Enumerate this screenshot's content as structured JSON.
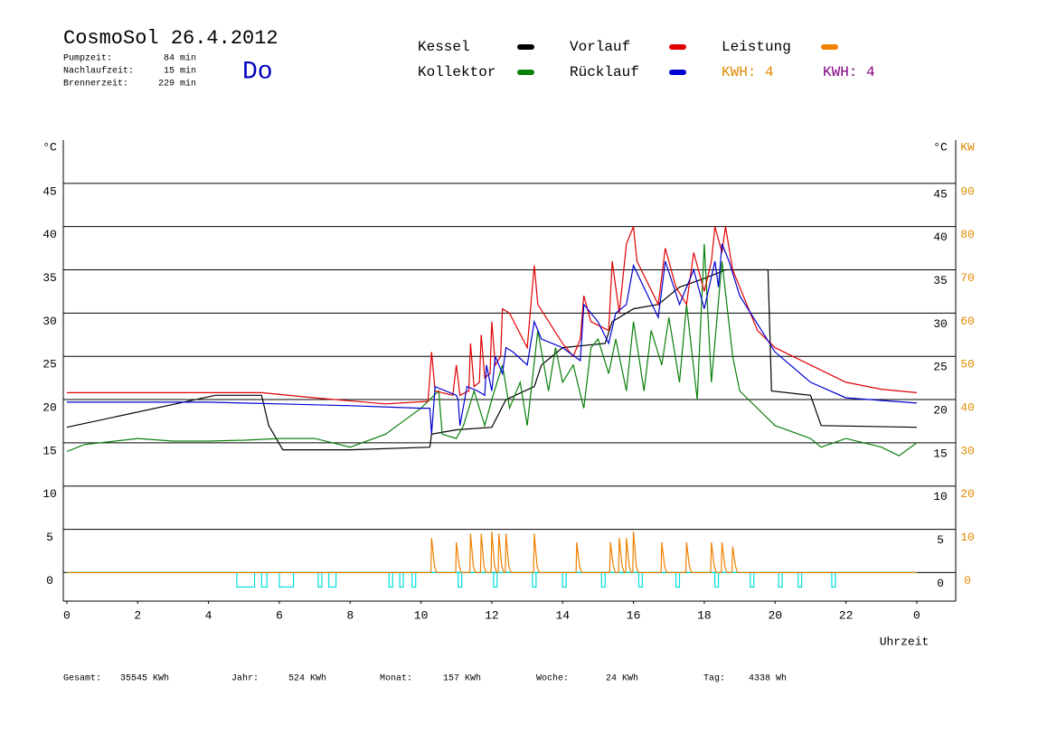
{
  "header": {
    "title": "CosmoSol 26.4.2012",
    "weekday": "Do",
    "stats": [
      {
        "label": "Pumpzeit:",
        "value": "84 min"
      },
      {
        "label": "Nachlaufzeit:",
        "value": "15 min"
      },
      {
        "label": "Brennerzeit:",
        "value": "229 min"
      }
    ]
  },
  "chart_data": {
    "type": "line",
    "ylabel": "°C",
    "y2label": "KW",
    "xlabel": "Uhrzeit",
    "xlim": [
      -0.1,
      25.1
    ],
    "ylim": [
      -3.3,
      50
    ],
    "y2lim": [
      -6.6,
      100
    ],
    "xticks": [
      0,
      2,
      4,
      6,
      8,
      10,
      12,
      14,
      16,
      18,
      20,
      22,
      {
        "value": 24,
        "label": "0"
      }
    ],
    "yticks": [
      0,
      5,
      10,
      15,
      20,
      25,
      30,
      35,
      40,
      45
    ],
    "y2ticks": [
      0,
      10,
      20,
      30,
      40,
      50,
      60,
      70,
      80,
      90
    ],
    "grid": true,
    "series": [
      {
        "name": "Kessel",
        "color": "#000000",
        "x": [
          0,
          4.2,
          5.5,
          5.7,
          6.1,
          8,
          10.25,
          10.3,
          11,
          12,
          12.4,
          13.2,
          13.4,
          14,
          15.2,
          15.4,
          16,
          16.7,
          17.3,
          18,
          18.3,
          18.6,
          19.8,
          19.9,
          21,
          21.3,
          24
        ],
        "values": [
          16.8,
          20.5,
          20.5,
          17,
          14.2,
          14.2,
          14.5,
          16,
          16.5,
          16.8,
          20,
          21.5,
          24,
          26,
          26.5,
          29,
          30.5,
          31,
          33,
          34,
          34.5,
          35,
          35,
          21,
          20.5,
          17,
          16.8
        ]
      },
      {
        "name": "Kollektor",
        "color": "#0a800a",
        "x": [
          0,
          0.5,
          2,
          3,
          4,
          5,
          6,
          7,
          8,
          9,
          10,
          10.5,
          10.6,
          11,
          11.2,
          11.5,
          11.8,
          12,
          12.3,
          12.5,
          12.8,
          13,
          13.3,
          13.6,
          13.8,
          14,
          14.3,
          14.6,
          14.8,
          15,
          15.3,
          15.5,
          15.8,
          16,
          16.3,
          16.5,
          16.8,
          17,
          17.3,
          17.5,
          17.8,
          18,
          18.2,
          18.5,
          18.8,
          19,
          20,
          21,
          21.3,
          22,
          23,
          23.5,
          24
        ],
        "values": [
          14,
          14.8,
          15.5,
          15.2,
          15.2,
          15.3,
          15.5,
          15.5,
          14.5,
          16,
          19,
          21,
          16,
          15.5,
          17,
          21,
          17,
          20,
          24,
          19,
          22,
          17,
          28,
          21,
          26,
          22,
          24,
          19,
          26,
          27,
          23,
          27,
          21,
          29,
          21,
          28,
          24,
          29.5,
          22,
          31,
          20,
          38,
          22,
          36,
          25,
          21,
          17,
          15.5,
          14.5,
          15.5,
          14.5,
          13.5,
          15
        ]
      },
      {
        "name": "Vorlauf",
        "color": "#e00000",
        "x": [
          0,
          5.5,
          7,
          9,
          10.2,
          10.3,
          10.4,
          10.9,
          11,
          11.1,
          11.35,
          11.4,
          11.5,
          11.65,
          11.7,
          11.8,
          11.95,
          12,
          12.1,
          12.25,
          12.3,
          12.5,
          13,
          13.2,
          13.3,
          14,
          14.3,
          14.5,
          14.6,
          14.8,
          15.3,
          15.4,
          15.6,
          15.8,
          16,
          16.1,
          16.7,
          16.9,
          17.2,
          17.5,
          17.7,
          18,
          18.2,
          18.3,
          18.5,
          18.6,
          18.8,
          19.5,
          20,
          21,
          22,
          23,
          24
        ],
        "values": [
          20.8,
          20.8,
          20.2,
          19.5,
          19.8,
          25.5,
          21,
          20.5,
          24,
          20.5,
          21,
          26.5,
          21.5,
          22,
          27.5,
          22.5,
          23,
          29,
          24,
          25,
          30.5,
          30,
          26,
          35.5,
          31,
          26.5,
          25,
          27,
          32,
          29,
          28,
          36,
          30,
          38,
          40,
          36,
          31,
          37.5,
          33,
          31,
          37,
          32.5,
          36,
          40,
          37,
          40,
          35,
          28,
          26,
          24,
          22,
          21.2,
          20.8
        ]
      },
      {
        "name": "Rücklauf",
        "color": "#0000d0",
        "x": [
          0,
          4,
          6,
          8,
          10,
          10.25,
          10.3,
          10.4,
          11,
          11.05,
          11.1,
          11.3,
          11.6,
          11.8,
          11.85,
          12,
          12.1,
          12.3,
          12.4,
          12.6,
          13,
          13.2,
          13.4,
          14,
          14.5,
          14.6,
          15,
          15.3,
          15.5,
          15.8,
          16,
          16.7,
          16.9,
          17.3,
          17.7,
          18,
          18.3,
          18.4,
          18.5,
          18.7,
          19,
          20,
          21,
          22,
          24
        ],
        "values": [
          19.7,
          19.7,
          19.5,
          19.3,
          19,
          19,
          16,
          21.5,
          20.5,
          20,
          17,
          21.5,
          21,
          20.5,
          24,
          21,
          25,
          23,
          26,
          25.5,
          24,
          29,
          27,
          26,
          24.5,
          31,
          29,
          26.5,
          30,
          31,
          35.5,
          29.5,
          36,
          31,
          35,
          30.5,
          36,
          33,
          38,
          36,
          32,
          25.5,
          22,
          20.2,
          19.6
        ]
      },
      {
        "name": "Leistung",
        "color": "#f08000",
        "axis": "y2",
        "x": [
          0,
          10.28,
          10.3,
          10.38,
          10.44,
          10.98,
          11,
          11.08,
          11.14,
          11.38,
          11.4,
          11.48,
          11.54,
          11.68,
          11.7,
          11.78,
          11.84,
          11.98,
          12,
          12.08,
          12.14,
          12.18,
          12.2,
          12.28,
          12.34,
          12.38,
          12.4,
          12.48,
          12.54,
          13.18,
          13.2,
          13.28,
          13.34,
          14.38,
          14.4,
          14.48,
          14.54,
          15.33,
          15.35,
          15.43,
          15.49,
          15.58,
          15.6,
          15.68,
          15.74,
          15.78,
          15.8,
          15.88,
          15.94,
          15.98,
          16,
          16.08,
          16.14,
          16.78,
          16.8,
          16.88,
          16.94,
          17.48,
          17.5,
          17.58,
          17.64,
          18.18,
          18.2,
          18.28,
          18.34,
          18.48,
          18.5,
          18.58,
          18.64,
          18.78,
          18.8,
          18.88,
          18.94,
          24
        ],
        "values": [
          0,
          0,
          8,
          1.5,
          0,
          0,
          7,
          1.5,
          0,
          0,
          9,
          1.5,
          0,
          0,
          9,
          1.5,
          0,
          0,
          9.5,
          1.5,
          0,
          0,
          9,
          1.5,
          0,
          0,
          9,
          1.5,
          0,
          0,
          9,
          1.5,
          0,
          0,
          7,
          1.5,
          0,
          0,
          7,
          1.5,
          0,
          0,
          8,
          1.5,
          0,
          0,
          8,
          1.5,
          0,
          0,
          9.5,
          1.5,
          0,
          0,
          7,
          1.5,
          0,
          0,
          7,
          1.5,
          0,
          0,
          7,
          1.5,
          0,
          0,
          7,
          1.5,
          0,
          0,
          6,
          1.5,
          0,
          0
        ]
      }
    ],
    "annotations": [
      {
        "text": "KWH: 4",
        "color": "#e08a00"
      },
      {
        "text": "KWH: 4",
        "color": "#800080"
      }
    ],
    "pump_color": "#00dede",
    "pump_on": [
      [
        4.8,
        5.3
      ],
      [
        5.5,
        5.65
      ],
      [
        6.0,
        6.4
      ],
      [
        7.1,
        7.2
      ],
      [
        7.4,
        7.6
      ],
      [
        9.1,
        9.2
      ],
      [
        9.4,
        9.5
      ],
      [
        9.75,
        9.85
      ],
      [
        11.05,
        11.15
      ],
      [
        12.05,
        12.15
      ],
      [
        13.15,
        13.25
      ],
      [
        14.0,
        14.1
      ],
      [
        15.1,
        15.2
      ],
      [
        16.15,
        16.25
      ],
      [
        17.2,
        17.3
      ],
      [
        18.3,
        18.4
      ],
      [
        19.3,
        19.4
      ],
      [
        20.1,
        20.2
      ],
      [
        20.65,
        20.75
      ],
      [
        21.6,
        21.7
      ]
    ]
  },
  "footer": [
    {
      "label": "Gesamt:",
      "value": "35545 KWh"
    },
    {
      "label": "Jahr:",
      "value": "524 KWh"
    },
    {
      "label": "Monat:",
      "value": "157 KWh"
    },
    {
      "label": "Woche:",
      "value": "24 KWh"
    },
    {
      "label": "Tag:",
      "value": "4338 Wh"
    }
  ]
}
